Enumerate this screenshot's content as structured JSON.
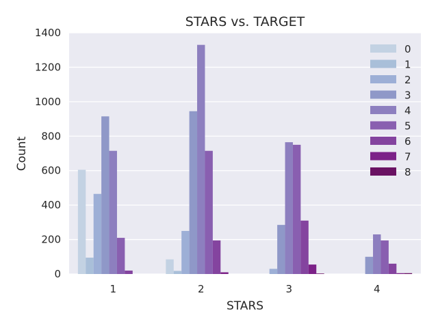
{
  "chart_data": {
    "type": "bar",
    "title": "STARS vs. TARGET",
    "xlabel": "STARS",
    "ylabel": "Count",
    "categories": [
      "1",
      "2",
      "3",
      "4"
    ],
    "ylim": [
      0,
      1400
    ],
    "yticks": [
      0,
      200,
      400,
      600,
      800,
      1000,
      1200,
      1400
    ],
    "grid": true,
    "legend_position": "top-right",
    "series": [
      {
        "name": "0",
        "color": "#c3d2e3",
        "values": [
          605,
          85,
          0,
          0
        ]
      },
      {
        "name": "1",
        "color": "#a9bfd9",
        "values": [
          95,
          18,
          0,
          0
        ]
      },
      {
        "name": "2",
        "color": "#9dafd6",
        "values": [
          465,
          250,
          30,
          0
        ]
      },
      {
        "name": "3",
        "color": "#8f98c8",
        "values": [
          915,
          945,
          285,
          100
        ]
      },
      {
        "name": "4",
        "color": "#8d7fbf",
        "values": [
          715,
          1330,
          765,
          230
        ]
      },
      {
        "name": "5",
        "color": "#895fb0",
        "values": [
          210,
          715,
          750,
          195
        ]
      },
      {
        "name": "6",
        "color": "#84449f",
        "values": [
          20,
          195,
          310,
          60
        ]
      },
      {
        "name": "7",
        "color": "#7c2288",
        "values": [
          0,
          10,
          55,
          5
        ]
      },
      {
        "name": "8",
        "color": "#6a1263",
        "values": [
          0,
          0,
          3,
          5
        ]
      }
    ]
  }
}
